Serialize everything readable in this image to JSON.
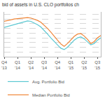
{
  "chart_data": {
    "type": "line",
    "title": "bid of assets in U.S. CLO portfolios ch",
    "categories": [
      "Q4\n'13",
      null,
      null,
      null,
      "Q1\n'14",
      null,
      null,
      null,
      "Q2\n'14",
      null,
      null,
      null,
      "Q3\n'14",
      null,
      null,
      null,
      "Q4\n'14",
      null,
      null,
      null,
      "Q1\n'15",
      null,
      null,
      null,
      "Q2\n'15",
      null,
      null,
      null,
      "Q3\n'15",
      null
    ],
    "series": [
      {
        "name": "Avg. Portfolio Bid",
        "color": "#5bc8d2",
        "values": [
          97.2,
          97.4,
          97.6,
          97.9,
          98.1,
          98.3,
          98.5,
          98.6,
          98.5,
          98.2,
          97.8,
          97.3,
          96.6,
          95.8,
          95.0,
          94.2,
          93.5,
          92.8,
          92.5,
          93.0,
          93.8,
          94.5,
          95.0,
          95.2,
          94.8,
          94.2,
          93.5,
          93.8,
          94.5,
          95.0
        ]
      },
      {
        "name": "Median Portfolio Bid",
        "color": "#f0873a",
        "values": [
          98.5,
          98.6,
          98.8,
          99.0,
          99.1,
          99.2,
          99.3,
          99.3,
          99.2,
          99.0,
          98.7,
          98.3,
          97.7,
          97.0,
          96.2,
          95.3,
          94.5,
          93.7,
          93.2,
          93.8,
          94.6,
          95.3,
          95.8,
          95.9,
          95.4,
          94.7,
          93.8,
          94.2,
          95.0,
          95.5
        ]
      }
    ],
    "ylim": [
      91,
      100.5
    ],
    "yticks": [
      92,
      93,
      94,
      95,
      96,
      97,
      98,
      99,
      100
    ],
    "grid": true,
    "tick_labels": "x"
  }
}
